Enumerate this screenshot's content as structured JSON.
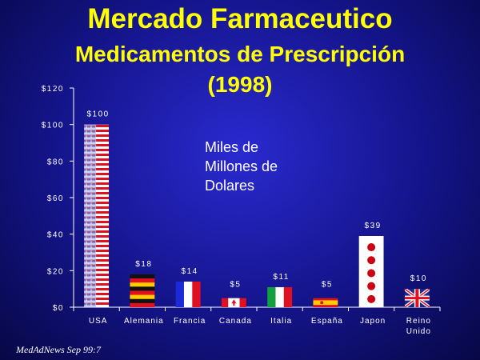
{
  "title": "Mercado Farmaceutico",
  "subtitle": "Medicamentos de Prescripción",
  "year_label": "(1998)",
  "units_note": [
    "Miles de",
    "Millones de",
    "Dolares"
  ],
  "source": "MedAdNews Sep 99:7",
  "chart_data": {
    "type": "bar",
    "categories": [
      "USA",
      "Alemania",
      "Francia",
      "Canada",
      "Italia",
      "España",
      "Japon",
      "Reino Unido"
    ],
    "values": [
      100,
      18,
      14,
      5,
      11,
      5,
      39,
      10
    ],
    "value_labels": [
      "$100",
      "$18",
      "$14",
      "$5",
      "$11",
      "$5",
      "$39",
      "$10"
    ],
    "yticks": [
      "$0",
      "$20",
      "$40",
      "$60",
      "$80",
      "$100",
      "$120"
    ],
    "ylim": [
      0,
      120
    ],
    "grid": false,
    "legend": "none",
    "bar_fill_style": [
      "us-flag",
      "germany-flag",
      "france-flag",
      "canada-flag",
      "italy-flag",
      "spain-flag",
      "japan-flag",
      "uk-flag"
    ],
    "colors": {
      "axis": "#ffffff",
      "text": "#ffffff",
      "title": "#ffff00"
    }
  }
}
